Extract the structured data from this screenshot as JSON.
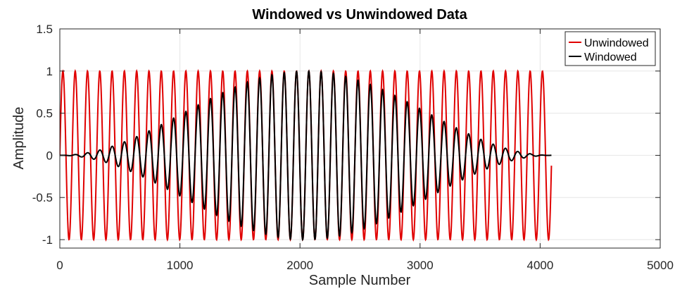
{
  "chart_data": {
    "type": "line",
    "title": "Windowed vs Unwindowed Data",
    "xlabel": "Sample Number",
    "ylabel": "Amplitude",
    "xlim": [
      0,
      5000
    ],
    "ylim": [
      -1.1,
      1.5
    ],
    "xticks": [
      0,
      1000,
      2000,
      3000,
      4000,
      5000
    ],
    "xtick_labels": [
      "0",
      "1000",
      "2000",
      "3000",
      "4000",
      "5000"
    ],
    "yticks": [
      1.5,
      1,
      0.5,
      0,
      -0.5,
      -1
    ],
    "ytick_labels": [
      "1.5",
      "1",
      "0.5",
      "0",
      "-0.5",
      "-1"
    ],
    "grid": true,
    "legend_position": "top-right",
    "signal": {
      "n_samples": 4096,
      "cycles": 40,
      "x": [
        0,
        4095
      ]
    },
    "series": [
      {
        "name": "Unwindowed",
        "color": "#e00000",
        "description": "sin(2*pi*40*n/4096)",
        "amplitude": 1
      },
      {
        "name": "Windowed",
        "color": "#000000",
        "description": "Hann-windowed sine",
        "amplitude": 1
      }
    ]
  }
}
